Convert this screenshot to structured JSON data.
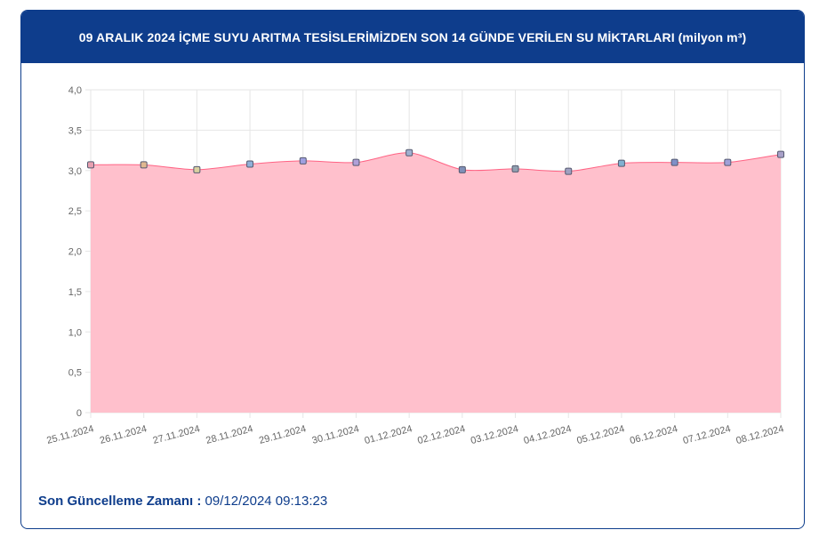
{
  "header": {
    "title": "09 ARALIK 2024 İÇME SUYU ARITMA TESİSLERİMİZDEN SON 14 GÜNDE VERİLEN SU MİKTARLARI (milyon m³)"
  },
  "footer": {
    "label": "Son Güncelleme Zamanı :",
    "value": " 09/12/2024 09:13:23"
  },
  "colors": {
    "header_bg": "#0e3d8c",
    "area_fill": "#ffc0cc",
    "line": "#ff6384"
  },
  "chart_data": {
    "type": "area",
    "title": "",
    "xlabel": "",
    "ylabel": "",
    "ylim": [
      0,
      4
    ],
    "yticks": [
      "0",
      "0,5",
      "1,0",
      "1,5",
      "2,0",
      "2,5",
      "3,0",
      "3,5",
      "4,0"
    ],
    "grid": true,
    "categories": [
      "25.11.2024",
      "26.11.2024",
      "27.11.2024",
      "28.11.2024",
      "29.11.2024",
      "30.11.2024",
      "01.12.2024",
      "02.12.2024",
      "03.12.2024",
      "04.12.2024",
      "05.12.2024",
      "06.12.2024",
      "07.12.2024",
      "08.12.2024"
    ],
    "series": [
      {
        "values": [
          3.07,
          3.07,
          3.01,
          3.08,
          3.12,
          3.1,
          3.22,
          3.01,
          3.02,
          2.99,
          3.09,
          3.1,
          3.1,
          3.2
        ],
        "point_colors": [
          "#e8a0b0",
          "#e0b890",
          "#d8d0a0",
          "#90b0d8",
          "#a0a0e0",
          "#b0a0d8",
          "#a0b0d0",
          "#8090b8",
          "#90a0b0",
          "#a0a0c0",
          "#80b0d0",
          "#8090c8",
          "#a0a0d8",
          "#a8a0c8"
        ]
      }
    ]
  }
}
